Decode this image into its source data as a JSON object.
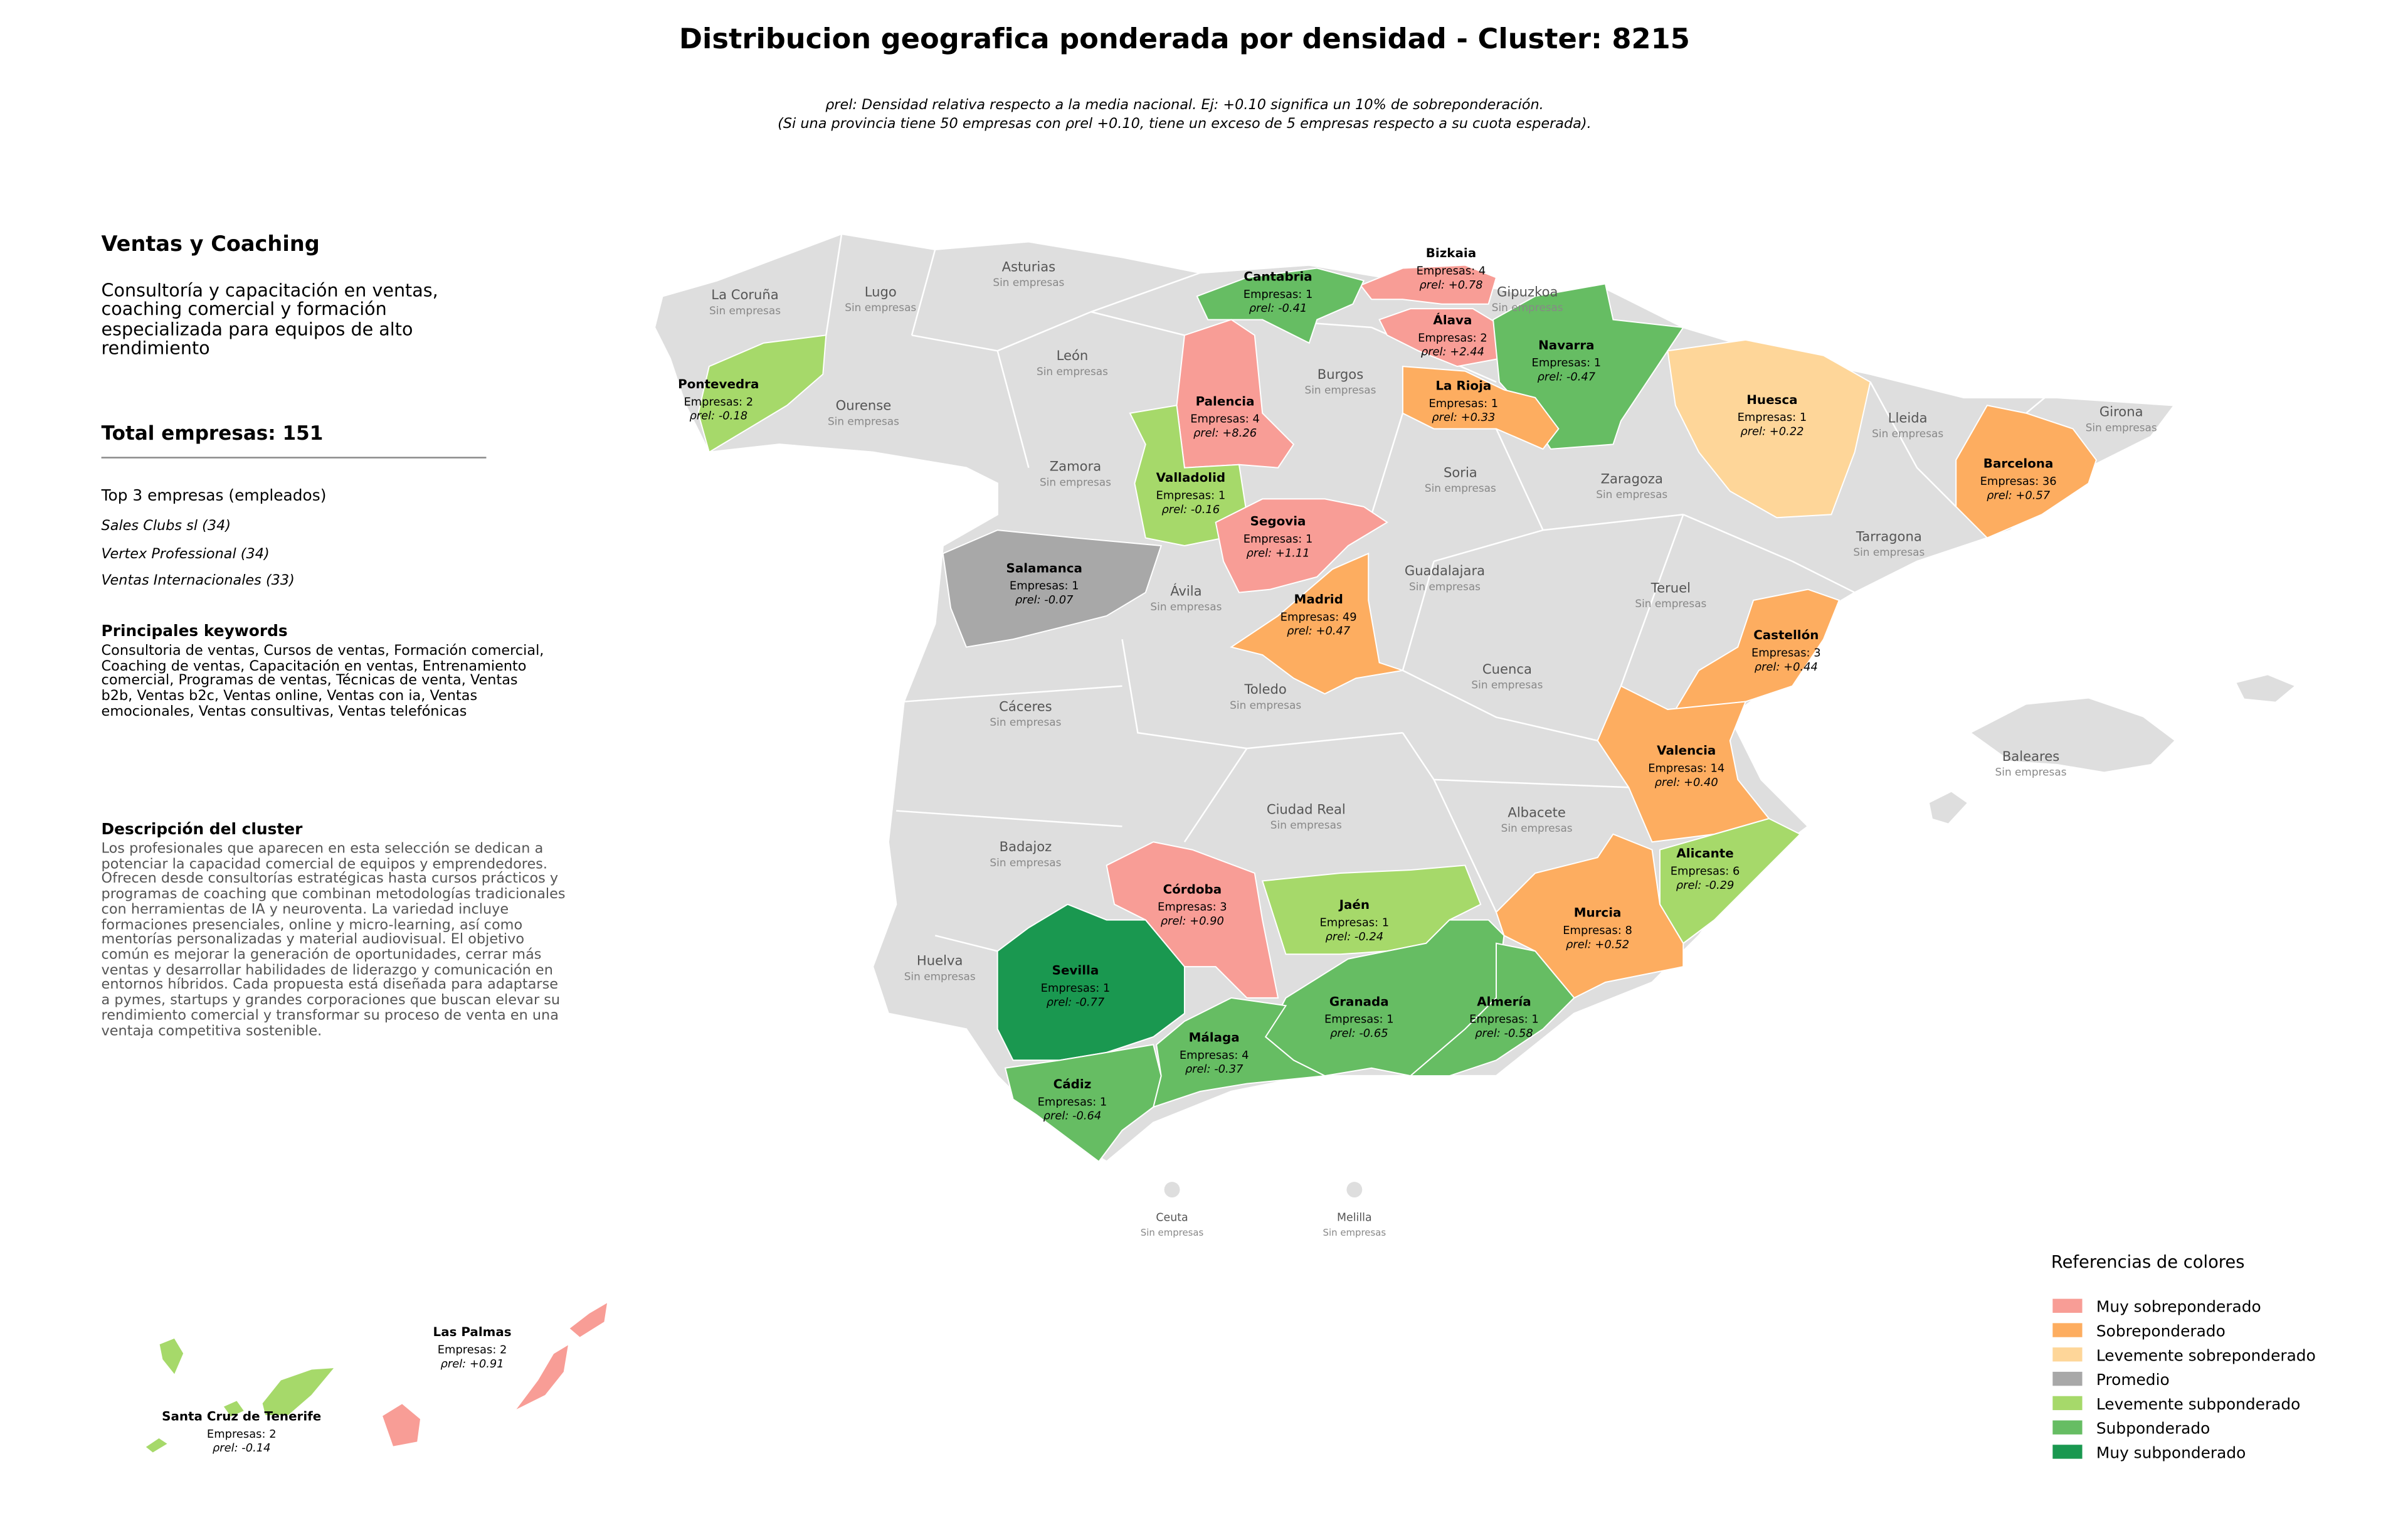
{
  "title": "Distribucion geografica ponderada por densidad - Cluster: 8215",
  "subtitle": [
    "ρrel: Densidad relativa respecto a la media nacional. Ej: +0.10 significa un 10% de sobreponderación.",
    "(Si una provincia tiene 50 empresas con ρrel +0.10, tiene un exceso de 5 empresas respecto a su cuota esperada)."
  ],
  "panel": {
    "heading": "Ventas y Coaching",
    "description": "Consultoría y capacitación en ventas, coaching comercial y formación especializada para equipos de alto rendimiento",
    "total": "Total empresas: 151",
    "top_title": "Top 3 empresas (empleados)",
    "top_companies": [
      "Sales Clubs sl (34)",
      "Vertex Professional (34)",
      "Ventas Internacionales (33)"
    ],
    "keywords_title": "Principales keywords",
    "keywords": "Consultoria de ventas, Cursos de ventas, Formación comercial, Coaching de ventas, Capacitación en ventas, Entrenamiento comercial, Programas de ventas, Técnicas de venta, Ventas b2b, Ventas b2c, Ventas online, Ventas con ia, Ventas emocionales, Ventas consultivas, Ventas telefónicas",
    "cluster_title": "Descripción del cluster",
    "cluster_description": "Los profesionales que aparecen en esta selección se dedican a potenciar la capacidad comercial de equipos y emprendedores. Ofrecen desde consultorías estratégicas hasta cursos prácticos y programas de coaching que combinan metodologías tradicionales con herramientas de IA y neuroventa. La variedad incluye formaciones presenciales, online y micro-learning, así como mentorías personalizadas y material audiovisual. El objetivo común es mejorar la generación de oportunidades, cerrar más ventas y desarrollar habilidades de liderazgo y comunicación en entornos híbridos. Cada propuesta está diseñada para adaptarse a pymes, startups y grandes corporaciones que buscan elevar su rendimiento comercial y transformar su proceso de venta en una ventaja competitiva sostenible."
  },
  "empty_label": "Sin empresas",
  "provinces": [
    {
      "name": "Bizkaia",
      "empresas": "Empresas: 4",
      "rho": "ρrel: +0.78",
      "color": "#f89d96"
    },
    {
      "name": "Cantabria",
      "empresas": "Empresas: 1",
      "rho": "ρrel: -0.41",
      "color": "#66bd63"
    },
    {
      "name": "Álava",
      "empresas": "Empresas: 2",
      "rho": "ρrel: +2.44",
      "color": "#f89d96"
    },
    {
      "name": "Navarra",
      "empresas": "Empresas: 1",
      "rho": "ρrel: -0.47",
      "color": "#66bd63"
    },
    {
      "name": "La Rioja",
      "empresas": "Empresas: 1",
      "rho": "ρrel: +0.33",
      "color": "#fdad60"
    },
    {
      "name": "Huesca",
      "empresas": "Empresas: 1",
      "rho": "ρrel: +0.22",
      "color": "#fed699"
    },
    {
      "name": "Barcelona",
      "empresas": "Empresas: 36",
      "rho": "ρrel: +0.57",
      "color": "#fdad60"
    },
    {
      "name": "Pontevedra",
      "empresas": "Empresas: 2",
      "rho": "ρrel: -0.18",
      "color": "#a6d96a"
    },
    {
      "name": "Palencia",
      "empresas": "Empresas: 4",
      "rho": "ρrel: +8.26",
      "color": "#f89d96"
    },
    {
      "name": "Valladolid",
      "empresas": "Empresas: 1",
      "rho": "ρrel: -0.16",
      "color": "#a6d96a"
    },
    {
      "name": "Segovia",
      "empresas": "Empresas: 1",
      "rho": "ρrel: +1.11",
      "color": "#f89d96"
    },
    {
      "name": "Salamanca",
      "empresas": "Empresas: 1",
      "rho": "ρrel: -0.07",
      "color": "#a8a8a8"
    },
    {
      "name": "Madrid",
      "empresas": "Empresas: 49",
      "rho": "ρrel: +0.47",
      "color": "#fdad60"
    },
    {
      "name": "Castellón",
      "empresas": "Empresas: 3",
      "rho": "ρrel: +0.44",
      "color": "#fdad60"
    },
    {
      "name": "Valencia",
      "empresas": "Empresas: 14",
      "rho": "ρrel: +0.40",
      "color": "#fdad60"
    },
    {
      "name": "Alicante",
      "empresas": "Empresas: 6",
      "rho": "ρrel: -0.29",
      "color": "#a6d96a"
    },
    {
      "name": "Córdoba",
      "empresas": "Empresas: 3",
      "rho": "ρrel: +0.90",
      "color": "#f89d96"
    },
    {
      "name": "Jaén",
      "empresas": "Empresas: 1",
      "rho": "ρrel: -0.24",
      "color": "#a6d96a"
    },
    {
      "name": "Murcia",
      "empresas": "Empresas: 8",
      "rho": "ρrel: +0.52",
      "color": "#fdad60"
    },
    {
      "name": "Sevilla",
      "empresas": "Empresas: 1",
      "rho": "ρrel: -0.77",
      "color": "#1a9850"
    },
    {
      "name": "Granada",
      "empresas": "Empresas: 1",
      "rho": "ρrel: -0.65",
      "color": "#66bd63"
    },
    {
      "name": "Almería",
      "empresas": "Empresas: 1",
      "rho": "ρrel: -0.58",
      "color": "#66bd63"
    },
    {
      "name": "Málaga",
      "empresas": "Empresas: 4",
      "rho": "ρrel: -0.37",
      "color": "#66bd63"
    },
    {
      "name": "Cádiz",
      "empresas": "Empresas: 1",
      "rho": "ρrel: -0.64",
      "color": "#66bd63"
    },
    {
      "name": "Las Palmas",
      "empresas": "Empresas: 2",
      "rho": "ρrel: +0.91",
      "color": "#f89d96"
    },
    {
      "name": "Santa Cruz de Tenerife",
      "empresas": "Empresas: 2",
      "rho": "ρrel: -0.14",
      "color": "#a6d96a"
    }
  ],
  "empty_provinces": [
    "La Coruña",
    "Lugo",
    "Asturias",
    "León",
    "Ourense",
    "Burgos",
    "Gipuzkoa",
    "Zamora",
    "Soria",
    "Zaragoza",
    "Lleida",
    "Girona",
    "Tarragona",
    "Ávila",
    "Guadalajara",
    "Teruel",
    "Cuenca",
    "Cáceres",
    "Toledo",
    "Ciudad Real",
    "Albacete",
    "Badajoz",
    "Huelva",
    "Baleares",
    "Ceuta",
    "Melilla"
  ],
  "legend": {
    "title": "Referencias de colores",
    "items": [
      {
        "label": "Muy sobreponderado",
        "color": "#f89d96"
      },
      {
        "label": "Sobreponderado",
        "color": "#fdad60"
      },
      {
        "label": "Levemente sobreponderado",
        "color": "#fed699"
      },
      {
        "label": "Promedio",
        "color": "#a8a8a8"
      },
      {
        "label": "Levemente subponderado",
        "color": "#a6d96a"
      },
      {
        "label": "Subponderado",
        "color": "#66bd63"
      },
      {
        "label": "Muy subponderado",
        "color": "#1a9850"
      }
    ]
  }
}
